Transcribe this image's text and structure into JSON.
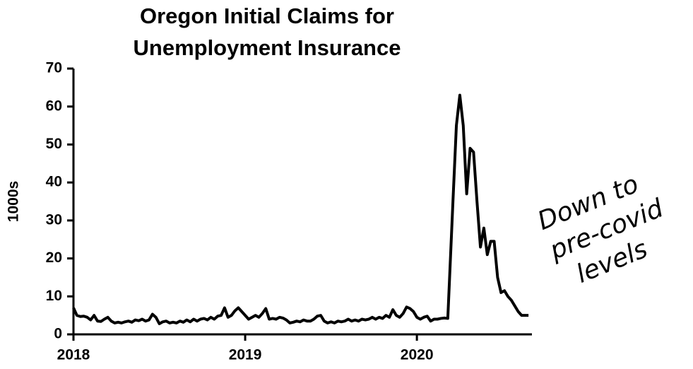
{
  "chart_data": {
    "type": "line",
    "title": [
      "Oregon Initial Claims for",
      "Unemployment Insurance"
    ],
    "y_label": "1000s",
    "annotation": [
      "Down to",
      "pre-covid",
      "levels"
    ],
    "xlim": [
      2018,
      2020.67
    ],
    "xticks": [
      2018,
      2019,
      2020
    ],
    "ylim": [
      0,
      70
    ],
    "yticks": [
      0,
      10,
      20,
      30,
      40,
      50,
      60,
      70
    ],
    "color": "#000000",
    "x": [
      2018.0,
      2018.02,
      2018.04,
      2018.06,
      2018.08,
      2018.1,
      2018.12,
      2018.14,
      2018.16,
      2018.18,
      2018.2,
      2018.22,
      2018.24,
      2018.26,
      2018.28,
      2018.3,
      2018.32,
      2018.34,
      2018.36,
      2018.38,
      2018.4,
      2018.42,
      2018.44,
      2018.46,
      2018.48,
      2018.5,
      2018.52,
      2018.54,
      2018.56,
      2018.58,
      2018.6,
      2018.62,
      2018.64,
      2018.66,
      2018.68,
      2018.7,
      2018.72,
      2018.74,
      2018.76,
      2018.78,
      2018.8,
      2018.82,
      2018.84,
      2018.86,
      2018.88,
      2018.9,
      2018.92,
      2018.94,
      2018.96,
      2018.98,
      2019.0,
      2019.02,
      2019.04,
      2019.06,
      2019.08,
      2019.1,
      2019.12,
      2019.14,
      2019.16,
      2019.18,
      2019.2,
      2019.22,
      2019.24,
      2019.26,
      2019.28,
      2019.3,
      2019.32,
      2019.34,
      2019.36,
      2019.38,
      2019.4,
      2019.42,
      2019.44,
      2019.46,
      2019.48,
      2019.5,
      2019.52,
      2019.54,
      2019.56,
      2019.58,
      2019.6,
      2019.62,
      2019.64,
      2019.66,
      2019.68,
      2019.7,
      2019.72,
      2019.74,
      2019.76,
      2019.78,
      2019.8,
      2019.82,
      2019.84,
      2019.86,
      2019.88,
      2019.9,
      2019.92,
      2019.94,
      2019.96,
      2019.98,
      2020.0,
      2020.02,
      2020.04,
      2020.06,
      2020.08,
      2020.1,
      2020.12,
      2020.14,
      2020.16,
      2020.18,
      2020.21,
      2020.23,
      2020.25,
      2020.27,
      2020.29,
      2020.31,
      2020.33,
      2020.35,
      2020.37,
      2020.39,
      2020.41,
      2020.43,
      2020.45,
      2020.47,
      2020.49,
      2020.51,
      2020.53,
      2020.55,
      2020.57,
      2020.59,
      2020.61,
      2020.63,
      2020.65
    ],
    "values": [
      7,
      5,
      4.7,
      4.8,
      4.5,
      3.8,
      5.0,
      3.5,
      3.4,
      4.0,
      4.5,
      3.5,
      3.0,
      3.2,
      3.0,
      3.3,
      3.5,
      3.2,
      3.8,
      3.6,
      4.0,
      3.5,
      3.8,
      5.3,
      4.5,
      2.8,
      3.3,
      3.5,
      3.0,
      3.2,
      3.0,
      3.5,
      3.2,
      3.8,
      3.3,
      4.0,
      3.5,
      4.0,
      4.2,
      3.8,
      4.5,
      4.0,
      4.8,
      5.0,
      7.0,
      4.5,
      5.0,
      6.2,
      7.0,
      6.0,
      5.0,
      4.0,
      4.5,
      5.0,
      4.5,
      5.5,
      6.8,
      4.0,
      4.2,
      4.0,
      4.5,
      4.3,
      3.8,
      3.0,
      3.2,
      3.5,
      3.3,
      3.8,
      3.5,
      3.5,
      4.0,
      4.8,
      5.0,
      3.5,
      3.0,
      3.3,
      3.0,
      3.5,
      3.3,
      3.5,
      4.0,
      3.5,
      3.8,
      3.5,
      4.0,
      3.8,
      4.0,
      4.5,
      4.0,
      4.5,
      4.2,
      5.0,
      4.5,
      6.5,
      5.0,
      4.5,
      5.5,
      7.2,
      6.8,
      6.0,
      4.5,
      4.0,
      4.5,
      4.8,
      3.5,
      4.0,
      4.0,
      4.2,
      4.3,
      4.2,
      35,
      55,
      63,
      55,
      37,
      49,
      48,
      35,
      23,
      28,
      21,
      24.5,
      24.5,
      15,
      11,
      11.5,
      10,
      9,
      7.5,
      6,
      5,
      5,
      5
    ]
  }
}
